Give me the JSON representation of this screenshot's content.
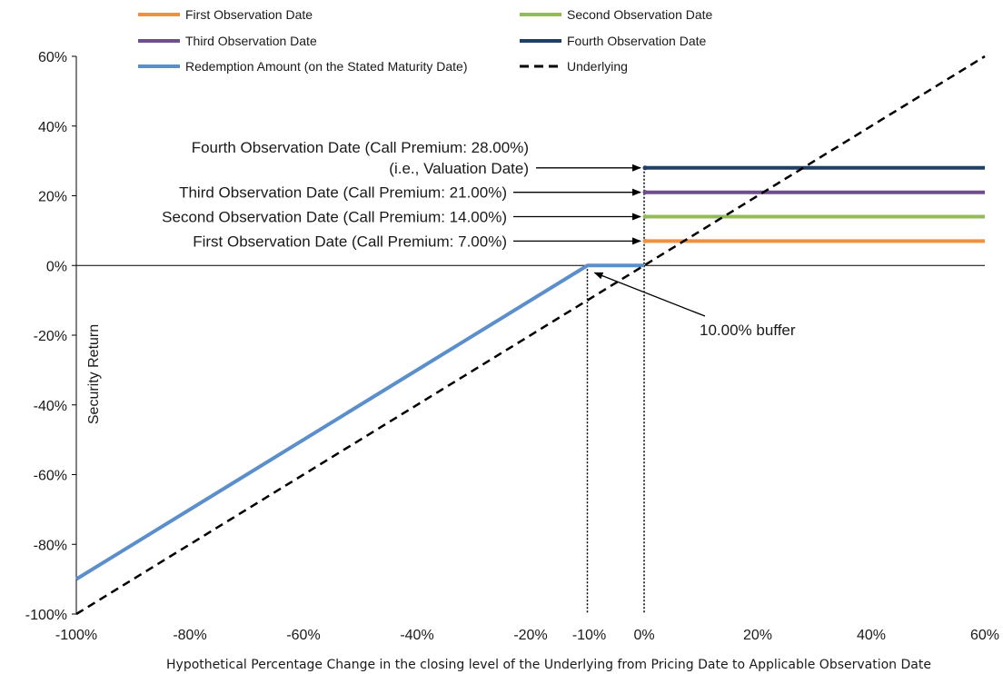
{
  "chart_data": {
    "type": "line",
    "xlabel": "Hypothetical Percentage Change in the closing level of the Underlying from Pricing Date to Applicable Observation Date",
    "ylabel": "Security Return",
    "xlim": [
      -100,
      60
    ],
    "ylim": [
      -100,
      60
    ],
    "x_ticks": [
      -100,
      -80,
      -60,
      -40,
      -20,
      0,
      20,
      40,
      60
    ],
    "x_tick_labels": [
      "-100%",
      "-80%",
      "-60%",
      "-40%",
      "-20%",
      "0%",
      "20%",
      "40%",
      "60%"
    ],
    "extra_x_tick": {
      "value": -10,
      "label": "-10%"
    },
    "y_ticks": [
      -100,
      -80,
      -60,
      -40,
      -20,
      0,
      20,
      40,
      60
    ],
    "y_tick_labels": [
      "-100%",
      "-80%",
      "-60%",
      "-40%",
      "-20%",
      "0%",
      "20%",
      "40%",
      "60%"
    ],
    "grid": false,
    "legend_position": "top",
    "legend": [
      {
        "label": "First Observation Date",
        "color": "#F0913E",
        "dash": false
      },
      {
        "label": "Second Observation Date",
        "color": "#93BB57",
        "dash": false
      },
      {
        "label": "Third Observation Date",
        "color": "#6F4E8C",
        "dash": false
      },
      {
        "label": "Fourth Observation Date",
        "color": "#1F3F66",
        "dash": false
      },
      {
        "label": "Redemption Amount (on the Stated Maturity Date)",
        "color": "#5B8FCB",
        "dash": false
      },
      {
        "label": "Underlying",
        "color": "#000000",
        "dash": true
      }
    ],
    "series": [
      {
        "name": "First Observation Date",
        "color": "#F0913E",
        "width": 4,
        "dash": false,
        "points": [
          [
            0,
            7
          ],
          [
            60,
            7
          ]
        ]
      },
      {
        "name": "Second Observation Date",
        "color": "#93BB57",
        "width": 4,
        "dash": false,
        "points": [
          [
            0,
            14
          ],
          [
            60,
            14
          ]
        ]
      },
      {
        "name": "Third Observation Date",
        "color": "#6F4E8C",
        "width": 4,
        "dash": false,
        "points": [
          [
            0,
            21
          ],
          [
            60,
            21
          ]
        ]
      },
      {
        "name": "Fourth Observation Date",
        "color": "#1F3F66",
        "width": 4,
        "dash": false,
        "points": [
          [
            0,
            28
          ],
          [
            60,
            28
          ]
        ]
      },
      {
        "name": "Redemption Amount (on the Stated Maturity Date)",
        "color": "#5B8FCB",
        "width": 4,
        "dash": false,
        "points": [
          [
            -100,
            -90
          ],
          [
            -10,
            0
          ],
          [
            0,
            0
          ]
        ]
      },
      {
        "name": "Underlying",
        "color": "#000000",
        "width": 2.5,
        "dash": true,
        "points": [
          [
            -100,
            -100
          ],
          [
            60,
            60
          ]
        ]
      }
    ],
    "annotations": [
      {
        "lines": [
          "Fourth Observation Date (Call Premium: 28.00%)",
          "(i.e., Valuation Date)"
        ],
        "arrow_to": [
          0,
          28
        ]
      },
      {
        "lines": [
          "Third Observation Date (Call Premium: 21.00%)"
        ],
        "arrow_to": [
          0,
          21
        ]
      },
      {
        "lines": [
          "Second Observation Date (Call Premium: 14.00%)"
        ],
        "arrow_to": [
          0,
          14
        ]
      },
      {
        "lines": [
          "First Observation Date (Call Premium: 7.00%)"
        ],
        "arrow_to": [
          0,
          7
        ]
      },
      {
        "lines": [
          "10.00% buffer"
        ],
        "arrow_to": [
          -10,
          0
        ]
      }
    ]
  }
}
